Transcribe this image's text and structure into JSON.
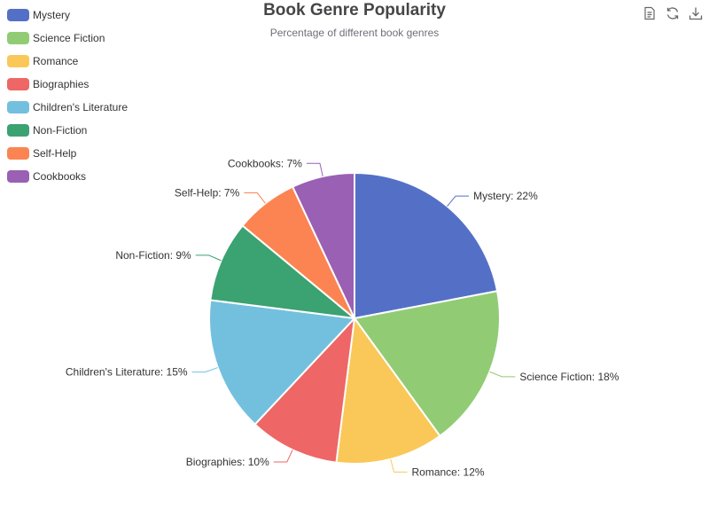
{
  "chart_data": {
    "type": "pie",
    "title": "Book Genre Popularity",
    "subtitle": "Percentage of different book genres",
    "legend_placement": "top-left",
    "categories": [
      "Mystery",
      "Science Fiction",
      "Romance",
      "Biographies",
      "Children's Literature",
      "Non-Fiction",
      "Self-Help",
      "Cookbooks"
    ],
    "values": [
      22,
      18,
      12,
      10,
      15,
      9,
      7,
      7
    ],
    "labels": [
      "Mystery: 22%",
      "Science Fiction: 18%",
      "Romance: 12%",
      "Biographies: 10%",
      "Children's Literature: 15%",
      "Non-Fiction: 9%",
      "Self-Help: 7%",
      "Cookbooks: 7%"
    ],
    "colors": [
      "#5470c6",
      "#91cc75",
      "#fac858",
      "#ee6666",
      "#73c0de",
      "#3ba272",
      "#fc8452",
      "#9a60b4"
    ]
  },
  "toolbox": {
    "icons": [
      "data-view-icon",
      "refresh-icon",
      "download-icon"
    ]
  }
}
